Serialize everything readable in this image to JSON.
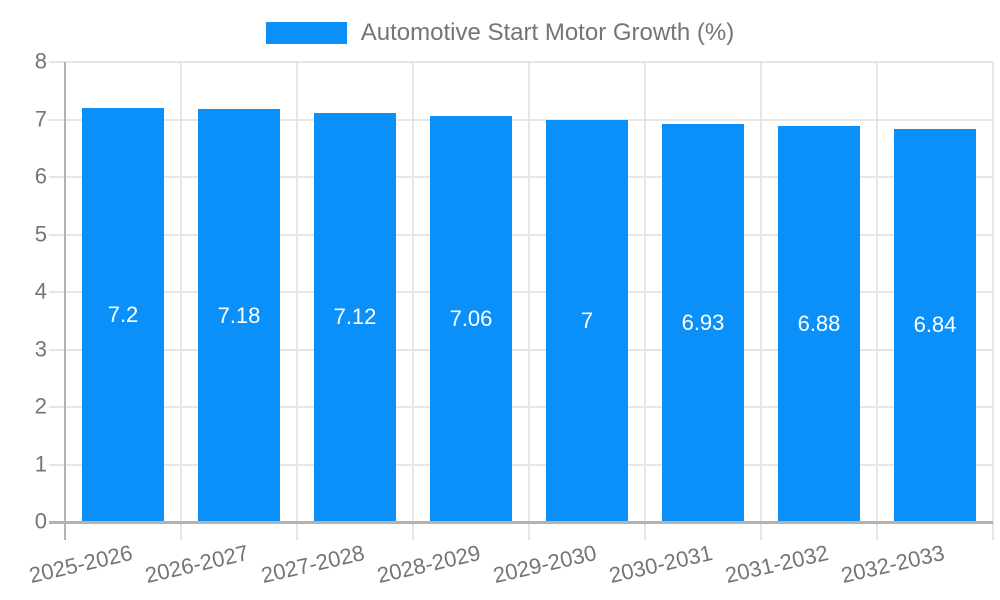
{
  "legend": {
    "label": "Automotive Start Motor Growth (%)"
  },
  "chart_data": {
    "type": "bar",
    "title": "Automotive Start Motor Growth (%)",
    "categories": [
      "2025-2026",
      "2026-2027",
      "2027-2028",
      "2028-2029",
      "2029-2030",
      "2030-2031",
      "2031-2032",
      "2032-2033"
    ],
    "values": [
      7.2,
      7.18,
      7.12,
      7.06,
      7,
      6.93,
      6.88,
      6.84
    ],
    "value_labels": [
      "7.2",
      "7.18",
      "7.12",
      "7.06",
      "7",
      "6.93",
      "6.88",
      "6.84"
    ],
    "xlabel": "",
    "ylabel": "",
    "ylim": [
      0,
      8
    ],
    "yticks": [
      "0",
      "1",
      "2",
      "3",
      "4",
      "5",
      "6",
      "7",
      "8"
    ],
    "grid": true,
    "legend_position": "top",
    "colors": {
      "bar": "#0A90F8",
      "axis_text": "#757575",
      "legend_text": "#757575",
      "grid_line": "#e6e6e6",
      "axis_line": "#b3b3b3",
      "value_label": "#ffffff",
      "background": "#ffffff"
    }
  }
}
